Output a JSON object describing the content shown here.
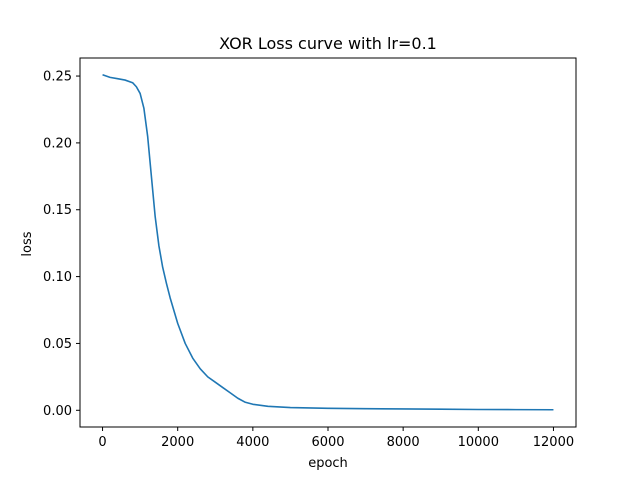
{
  "chart_data": {
    "type": "line",
    "title": "XOR Loss curve with lr=0.1",
    "xlabel": "epoch",
    "ylabel": "loss",
    "xlim": [
      -600,
      12600
    ],
    "ylim": [
      -0.0125,
      0.2635
    ],
    "xticks": [
      0,
      2000,
      4000,
      6000,
      8000,
      10000,
      12000
    ],
    "xtick_labels": [
      "0",
      "2000",
      "4000",
      "6000",
      "8000",
      "10000",
      "12000"
    ],
    "yticks": [
      0.0,
      0.05,
      0.1,
      0.15,
      0.2,
      0.25
    ],
    "ytick_labels": [
      "0.00",
      "0.05",
      "0.10",
      "0.15",
      "0.20",
      "0.25"
    ],
    "grid": false,
    "series": [
      {
        "color": "#1f77b4",
        "x": [
          0,
          200,
          400,
          600,
          800,
          900,
          1000,
          1100,
          1200,
          1300,
          1400,
          1500,
          1600,
          1700,
          1800,
          2000,
          2200,
          2400,
          2600,
          2800,
          3000,
          3200,
          3400,
          3600,
          3800,
          4000,
          4400,
          5000,
          6000,
          7000,
          8000,
          9000,
          10000,
          11000,
          12000
        ],
        "y": [
          0.251,
          0.249,
          0.248,
          0.247,
          0.245,
          0.242,
          0.237,
          0.226,
          0.205,
          0.175,
          0.145,
          0.123,
          0.107,
          0.095,
          0.084,
          0.065,
          0.05,
          0.039,
          0.031,
          0.025,
          0.021,
          0.017,
          0.013,
          0.009,
          0.006,
          0.0045,
          0.003,
          0.002,
          0.0015,
          0.0012,
          0.001,
          0.0008,
          0.0006,
          0.0005,
          0.0004
        ]
      }
    ]
  }
}
